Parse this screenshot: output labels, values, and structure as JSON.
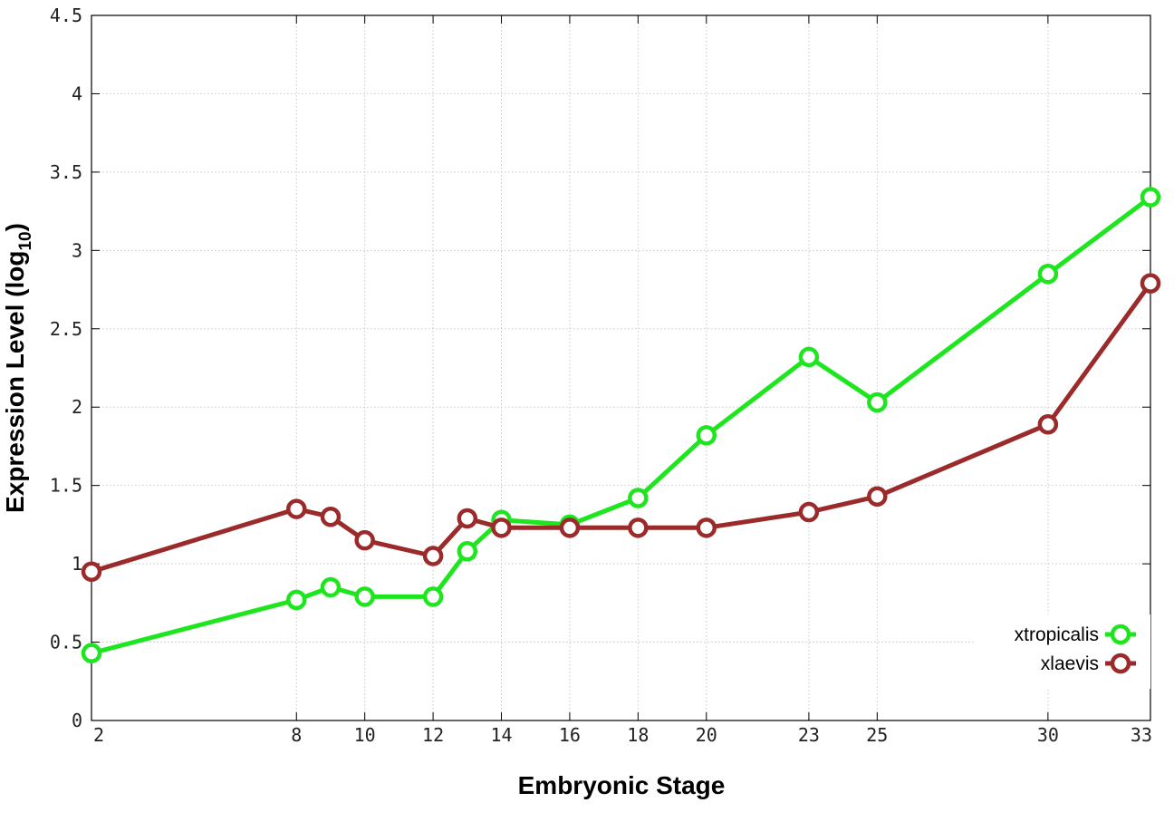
{
  "chart_data": {
    "type": "line",
    "title": "",
    "xlabel": "Embryonic Stage",
    "ylabel": "Expression Level (log",
    "ylabel_subscript": "10",
    "ylabel_suffix": ")",
    "x": [
      2,
      8,
      9,
      10,
      12,
      13,
      14,
      16,
      18,
      20,
      23,
      25,
      30,
      33
    ],
    "x_tick_labels": [
      "2",
      "8",
      "10",
      "12",
      "14",
      "16",
      "18",
      "20",
      "23",
      "25",
      "30",
      "33"
    ],
    "x_tick_values": [
      2,
      8,
      10,
      12,
      14,
      16,
      18,
      20,
      23,
      25,
      30,
      33
    ],
    "y_tick_labels": [
      "0",
      "0.5",
      "1",
      "1.5",
      "2",
      "2.5",
      "3",
      "3.5",
      "4",
      "4.5"
    ],
    "y_tick_values": [
      0,
      0.5,
      1,
      1.5,
      2,
      2.5,
      3,
      3.5,
      4,
      4.5
    ],
    "xlim": [
      2,
      33
    ],
    "ylim": [
      0,
      4.5
    ],
    "grid": true,
    "legend_position": "bottom-right",
    "series": [
      {
        "name": "xtropicalis",
        "color": "#1ee61e",
        "values": [
          0.43,
          0.77,
          0.85,
          0.79,
          0.79,
          1.08,
          1.28,
          1.25,
          1.42,
          1.82,
          2.32,
          2.03,
          2.85,
          3.34
        ]
      },
      {
        "name": "xlaevis",
        "color": "#9b2b2b",
        "values": [
          0.95,
          1.35,
          1.3,
          1.15,
          1.05,
          1.29,
          1.23,
          1.23,
          1.23,
          1.23,
          1.33,
          1.43,
          1.89,
          2.79
        ]
      }
    ]
  }
}
